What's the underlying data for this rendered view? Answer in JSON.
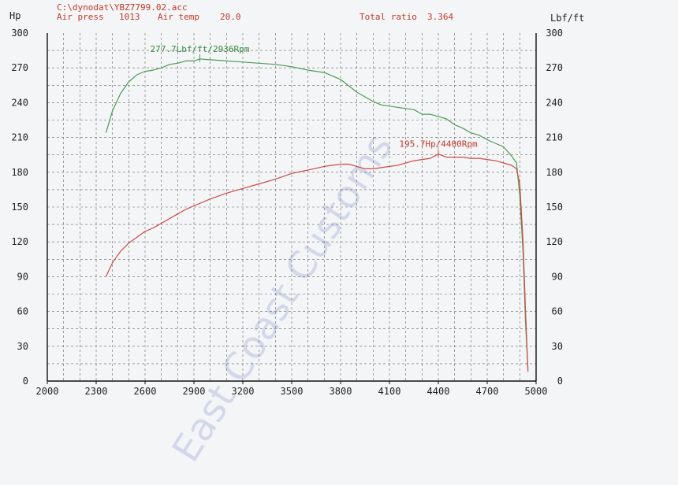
{
  "header": {
    "file_path": "C:\\dynodat\\YBZ7799.02.acc",
    "air_press_label": "Air press",
    "air_press_value": "1013",
    "air_temp_label": "Air temp",
    "air_temp_value": "20.0",
    "total_ratio_label": "Total ratio",
    "total_ratio_value": "3.364"
  },
  "watermark": "East Coast Customs",
  "colors": {
    "torque": "#4f9a5a",
    "power": "#cc4b4b",
    "grid": "#666666"
  },
  "chart_data": {
    "type": "line",
    "xlim": [
      2000,
      5000
    ],
    "ylim_left": [
      0,
      300
    ],
    "ylim_right": [
      0,
      300
    ],
    "ylabel_left": "Hp",
    "ylabel_right": "Lbf/ft",
    "x_ticks": [
      "2000",
      "2300",
      "2600",
      "2900",
      "3200",
      "3500",
      "3800",
      "4100",
      "4400",
      "4700",
      "5000"
    ],
    "y_ticks_left": [
      "0",
      "30",
      "60",
      "90",
      "120",
      "150",
      "180",
      "210",
      "240",
      "270",
      "300"
    ],
    "y_ticks_right": [
      "0",
      "30",
      "60",
      "90",
      "120",
      "150",
      "180",
      "210",
      "240",
      "270",
      "300"
    ],
    "grid": true,
    "series": [
      {
        "key": "torque",
        "x": [
          2360,
          2400,
          2450,
          2500,
          2550,
          2600,
          2650,
          2700,
          2750,
          2800,
          2850,
          2900,
          2936,
          3000,
          3100,
          3200,
          3300,
          3400,
          3500,
          3600,
          3700,
          3800,
          3900,
          3950,
          4000,
          4050,
          4100,
          4150,
          4200,
          4250,
          4300,
          4350,
          4400,
          4450,
          4500,
          4550,
          4600,
          4650,
          4700,
          4750,
          4800,
          4850,
          4880,
          4900,
          4920,
          4935,
          4950
        ],
        "y": [
          214,
          233,
          248,
          258,
          264,
          267,
          268,
          270,
          273,
          274,
          276,
          276,
          277.7,
          277,
          276,
          275,
          274,
          273,
          271,
          268,
          266,
          260,
          249,
          245,
          241,
          238,
          237,
          236,
          235,
          234,
          230,
          230,
          228,
          226,
          221,
          218,
          214,
          212,
          208,
          205,
          202,
          194,
          188,
          160,
          110,
          50,
          10
        ]
      },
      {
        "key": "power",
        "x": [
          2360,
          2400,
          2450,
          2500,
          2550,
          2600,
          2650,
          2700,
          2750,
          2800,
          2850,
          2900,
          3000,
          3100,
          3200,
          3300,
          3400,
          3500,
          3600,
          3700,
          3800,
          3850,
          3900,
          3950,
          4000,
          4050,
          4100,
          4150,
          4200,
          4250,
          4300,
          4350,
          4400,
          4450,
          4500,
          4550,
          4600,
          4650,
          4700,
          4750,
          4800,
          4850,
          4880,
          4900,
          4920,
          4935,
          4950
        ],
        "y": [
          90,
          102,
          112,
          119,
          124,
          129,
          132,
          136,
          140,
          144,
          148,
          151,
          157,
          162,
          166,
          170,
          174,
          179,
          182,
          185,
          187,
          187,
          185,
          183,
          183,
          184,
          185,
          186,
          188,
          190,
          191,
          192,
          195.7,
          193,
          193,
          193,
          192,
          192,
          191,
          190,
          188,
          186,
          183,
          170,
          120,
          60,
          8
        ]
      }
    ],
    "annotations": [
      {
        "series": "torque",
        "text": "277.7Lbf/ft/2936Rpm",
        "x": 2936,
        "y": 277.7
      },
      {
        "series": "power",
        "text": "195.7Hp/4400Rpm",
        "x": 4400,
        "y": 195.7
      }
    ]
  }
}
